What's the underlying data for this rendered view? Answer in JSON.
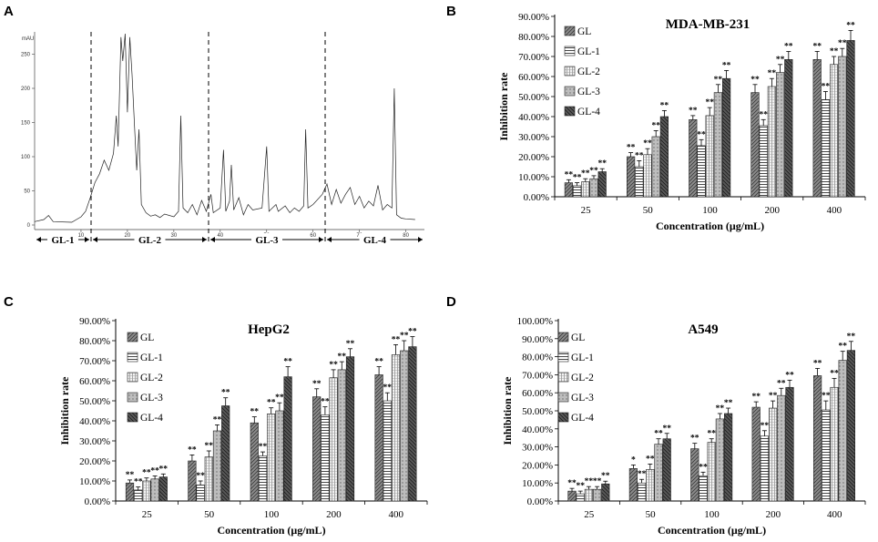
{
  "panels": {
    "A": "A",
    "B": "B",
    "C": "C",
    "D": "D"
  },
  "chromatogram": {
    "y_unit": "mAU",
    "y_ticks": [
      "0",
      "50",
      "100",
      "150",
      "200",
      "250"
    ],
    "x_ticks": [
      "10",
      "20",
      "30",
      "40",
      "50",
      "60",
      "70",
      "80"
    ],
    "segments": [
      "GL-1",
      "GL-2",
      "GL-3",
      "GL-4"
    ],
    "trace": [
      [
        0,
        5
      ],
      [
        2,
        8
      ],
      [
        3,
        14
      ],
      [
        4,
        5
      ],
      [
        8,
        4
      ],
      [
        10,
        12
      ],
      [
        11,
        20
      ],
      [
        12,
        40
      ],
      [
        13,
        62
      ],
      [
        14,
        75
      ],
      [
        15,
        95
      ],
      [
        16,
        80
      ],
      [
        17,
        105
      ],
      [
        17.6,
        160
      ],
      [
        18,
        115
      ],
      [
        18.6,
        275
      ],
      [
        19,
        240
      ],
      [
        19.5,
        280
      ],
      [
        20,
        165
      ],
      [
        20.5,
        275
      ],
      [
        21,
        220
      ],
      [
        21.5,
        150
      ],
      [
        22,
        80
      ],
      [
        22.5,
        140
      ],
      [
        23,
        30
      ],
      [
        24,
        18
      ],
      [
        25,
        13
      ],
      [
        26,
        15
      ],
      [
        27,
        11
      ],
      [
        28,
        16
      ],
      [
        30,
        12
      ],
      [
        31,
        20
      ],
      [
        31.5,
        160
      ],
      [
        32,
        25
      ],
      [
        33,
        18
      ],
      [
        34,
        30
      ],
      [
        35,
        15
      ],
      [
        36,
        36
      ],
      [
        37,
        20
      ],
      [
        38,
        45
      ],
      [
        38.5,
        18
      ],
      [
        40,
        25
      ],
      [
        40.7,
        110
      ],
      [
        41.2,
        20
      ],
      [
        42,
        35
      ],
      [
        42.4,
        88
      ],
      [
        42.9,
        22
      ],
      [
        44,
        40
      ],
      [
        45,
        15
      ],
      [
        46,
        30
      ],
      [
        47,
        22
      ],
      [
        49,
        25
      ],
      [
        50,
        115
      ],
      [
        50.5,
        20
      ],
      [
        52,
        30
      ],
      [
        52.5,
        20
      ],
      [
        54,
        28
      ],
      [
        55,
        18
      ],
      [
        56,
        25
      ],
      [
        57,
        20
      ],
      [
        58,
        28
      ],
      [
        58.4,
        140
      ],
      [
        58.9,
        25
      ],
      [
        60,
        30
      ],
      [
        62,
        45
      ],
      [
        63,
        60
      ],
      [
        64,
        30
      ],
      [
        65,
        52
      ],
      [
        66,
        32
      ],
      [
        67,
        45
      ],
      [
        68,
        55
      ],
      [
        69,
        30
      ],
      [
        70,
        42
      ],
      [
        71,
        25
      ],
      [
        72,
        35
      ],
      [
        73,
        28
      ],
      [
        74,
        58
      ],
      [
        75,
        22
      ],
      [
        76,
        30
      ],
      [
        77,
        25
      ],
      [
        77.5,
        200
      ],
      [
        78,
        15
      ],
      [
        79,
        10
      ],
      [
        80,
        9
      ],
      [
        82,
        8
      ]
    ]
  },
  "chart_data": [
    {
      "type": "bar",
      "title": "MDA-MB-231",
      "xlabel": "Concentration (μg/mL)",
      "ylabel": "Inhibition rate",
      "categories": [
        "25",
        "50",
        "100",
        "200",
        "400"
      ],
      "ylim": [
        0,
        90
      ],
      "yticks": [
        "0.00%",
        "10.00%",
        "20.00%",
        "30.00%",
        "40.00%",
        "50.00%",
        "60.00%",
        "70.00%",
        "80.00%",
        "90.00%"
      ],
      "series": [
        {
          "name": "GL",
          "values": [
            7,
            20,
            38.5,
            52,
            68.5
          ],
          "errors": [
            1.5,
            2,
            2,
            4,
            4
          ]
        },
        {
          "name": "GL-1",
          "values": [
            5.5,
            15,
            25.5,
            35.5,
            48.5
          ],
          "errors": [
            1.5,
            3,
            3,
            3,
            4
          ]
        },
        {
          "name": "GL-2",
          "values": [
            7.5,
            21,
            40.5,
            55,
            66
          ],
          "errors": [
            1.5,
            3,
            4,
            4,
            4
          ]
        },
        {
          "name": "GL-3",
          "values": [
            9,
            30,
            52,
            62,
            70
          ],
          "errors": [
            1.5,
            3,
            4,
            4,
            4
          ]
        },
        {
          "name": "GL-4",
          "values": [
            12.5,
            40,
            59,
            68.5,
            78
          ],
          "errors": [
            1.5,
            3,
            4,
            4,
            5
          ]
        }
      ],
      "annotations": [
        [
          "**",
          "**",
          "**",
          "**",
          "**"
        ],
        [
          "**",
          "**",
          "**",
          "**",
          "**"
        ],
        [
          "**",
          "**",
          "**",
          "**",
          "**"
        ],
        [
          "**",
          "**",
          "**",
          "**",
          "**"
        ],
        [
          "**",
          "**",
          "**",
          "**",
          "**"
        ]
      ]
    },
    {
      "type": "bar",
      "title": "HepG2",
      "xlabel": "Concentration (μg/mL)",
      "ylabel": "Inhibition rate",
      "categories": [
        "25",
        "50",
        "100",
        "200",
        "400"
      ],
      "ylim": [
        0,
        90
      ],
      "yticks": [
        "0.00%",
        "10.00%",
        "20.00%",
        "30.00%",
        "40.00%",
        "50.00%",
        "60.00%",
        "70.00%",
        "80.00%",
        "90.00%"
      ],
      "series": [
        {
          "name": "GL",
          "values": [
            9,
            20,
            39,
            52,
            63
          ],
          "errors": [
            1.5,
            3,
            3,
            4,
            4
          ]
        },
        {
          "name": "GL-1",
          "values": [
            5.5,
            8,
            22.5,
            43,
            50
          ],
          "errors": [
            1.5,
            2,
            2,
            4,
            4
          ]
        },
        {
          "name": "GL-2",
          "values": [
            10,
            22,
            43.5,
            61.5,
            73
          ],
          "errors": [
            1.5,
            3,
            3,
            4,
            5
          ]
        },
        {
          "name": "GL-3",
          "values": [
            11,
            35,
            45,
            65.5,
            75
          ],
          "errors": [
            1.5,
            3,
            4,
            4,
            5
          ]
        },
        {
          "name": "GL-4",
          "values": [
            12,
            47.5,
            62,
            72,
            77
          ],
          "errors": [
            1.5,
            4,
            5,
            4,
            5
          ]
        }
      ],
      "annotations": [
        [
          "**",
          "**",
          "**",
          "**",
          "**"
        ],
        [
          "**",
          "**",
          "**",
          "**",
          "**"
        ],
        [
          "**",
          "**",
          "**",
          "**",
          "**"
        ],
        [
          "**",
          "**",
          "**",
          "**",
          "**"
        ],
        [
          "**",
          "**",
          "**",
          "**",
          "**"
        ]
      ]
    },
    {
      "type": "bar",
      "title": "A549",
      "xlabel": "Concentration (μg/mL)",
      "ylabel": "Inhibition rate",
      "categories": [
        "25",
        "50",
        "100",
        "200",
        "400"
      ],
      "ylim": [
        0,
        100
      ],
      "yticks": [
        "0.00%",
        "10.00%",
        "20.00%",
        "30.00%",
        "40.00%",
        "50.00%",
        "60.00%",
        "70.00%",
        "80.00%",
        "90.00%",
        "100.00%"
      ],
      "series": [
        {
          "name": "GL",
          "values": [
            5.5,
            18,
            29,
            52,
            69.5
          ],
          "errors": [
            1.5,
            2,
            3,
            3,
            4
          ]
        },
        {
          "name": "GL-1",
          "values": [
            4,
            10,
            14,
            36,
            50.5
          ],
          "errors": [
            1.5,
            2,
            2,
            3,
            5
          ]
        },
        {
          "name": "GL-2",
          "values": [
            6.5,
            17.5,
            32.5,
            51.5,
            63
          ],
          "errors": [
            1.5,
            3,
            2,
            4,
            5
          ]
        },
        {
          "name": "GL-3",
          "values": [
            6.5,
            31.5,
            45.5,
            58.5,
            78
          ],
          "errors": [
            1.5,
            3,
            3,
            4,
            5
          ]
        },
        {
          "name": "GL-4",
          "values": [
            9.5,
            34.5,
            48.5,
            63,
            83.5
          ],
          "errors": [
            1.5,
            3,
            3,
            4,
            5
          ]
        }
      ],
      "annotations": [
        [
          "**",
          "*",
          "**",
          "**",
          "**"
        ],
        [
          "**",
          "**",
          "**",
          "**",
          "**"
        ],
        [
          "**",
          "**",
          "**",
          "**",
          "**"
        ],
        [
          "**",
          "**",
          "**",
          "**",
          "**"
        ],
        [
          "**",
          "**",
          "**",
          "**",
          "**"
        ]
      ]
    }
  ]
}
